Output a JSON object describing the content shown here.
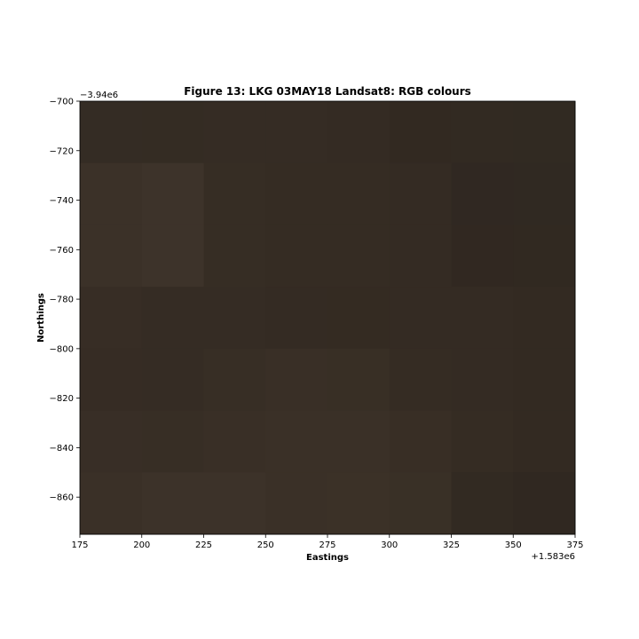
{
  "chart_data": {
    "type": "heatmap",
    "title": "Figure 13: LKG 03MAY18  Landsat8: RGB colours",
    "xlabel": "Eastings",
    "ylabel": "Northings",
    "x_offset_label": "+1.583e6",
    "y_offset_label": "−3.94e6",
    "xlim": [
      175,
      375
    ],
    "ylim": [
      -875,
      -700
    ],
    "xticks": [
      175,
      200,
      225,
      250,
      275,
      300,
      325,
      350,
      375
    ],
    "yticks": [
      -700,
      -720,
      -740,
      -760,
      -780,
      -800,
      -820,
      -840,
      -860
    ],
    "xtick_labels": [
      "175",
      "200",
      "225",
      "250",
      "275",
      "300",
      "325",
      "350",
      "375"
    ],
    "ytick_labels": [
      "−700",
      "−720",
      "−740",
      "−760",
      "−780",
      "−800",
      "−820",
      "−840",
      "−860"
    ],
    "cell_size": 25,
    "x_edges": [
      175,
      200,
      225,
      250,
      275,
      300,
      325,
      350,
      375
    ],
    "y_edges": [
      -700,
      -725,
      -750,
      -775,
      -800,
      -825,
      -850,
      -875
    ],
    "rows": [
      [
        "#342c24",
        "#342c23",
        "#352c24",
        "#352c24",
        "#342b23",
        "#322921",
        "#322a22",
        "#312a22"
      ],
      [
        "#3b3128",
        "#3d332a",
        "#362d24",
        "#352c23",
        "#352c23",
        "#342b23",
        "#302822",
        "#302922"
      ],
      [
        "#3b3128",
        "#3d332a",
        "#362d24",
        "#352c23",
        "#352c23",
        "#342b23",
        "#312821",
        "#312921"
      ],
      [
        "#372d25",
        "#352c24",
        "#352c24",
        "#342b23",
        "#342b22",
        "#342b23",
        "#342b23",
        "#332a22"
      ],
      [
        "#362c24",
        "#352c24",
        "#372e25",
        "#392f26",
        "#382f25",
        "#352c23",
        "#342b23",
        "#332a22"
      ],
      [
        "#382e26",
        "#372e25",
        "#392f26",
        "#3a3027",
        "#3a3027",
        "#382e25",
        "#352c23",
        "#332a22"
      ],
      [
        "#3a3027",
        "#3c3229",
        "#3c3229",
        "#3a3027",
        "#3b3127",
        "#393026",
        "#322a22",
        "#302821"
      ]
    ]
  }
}
